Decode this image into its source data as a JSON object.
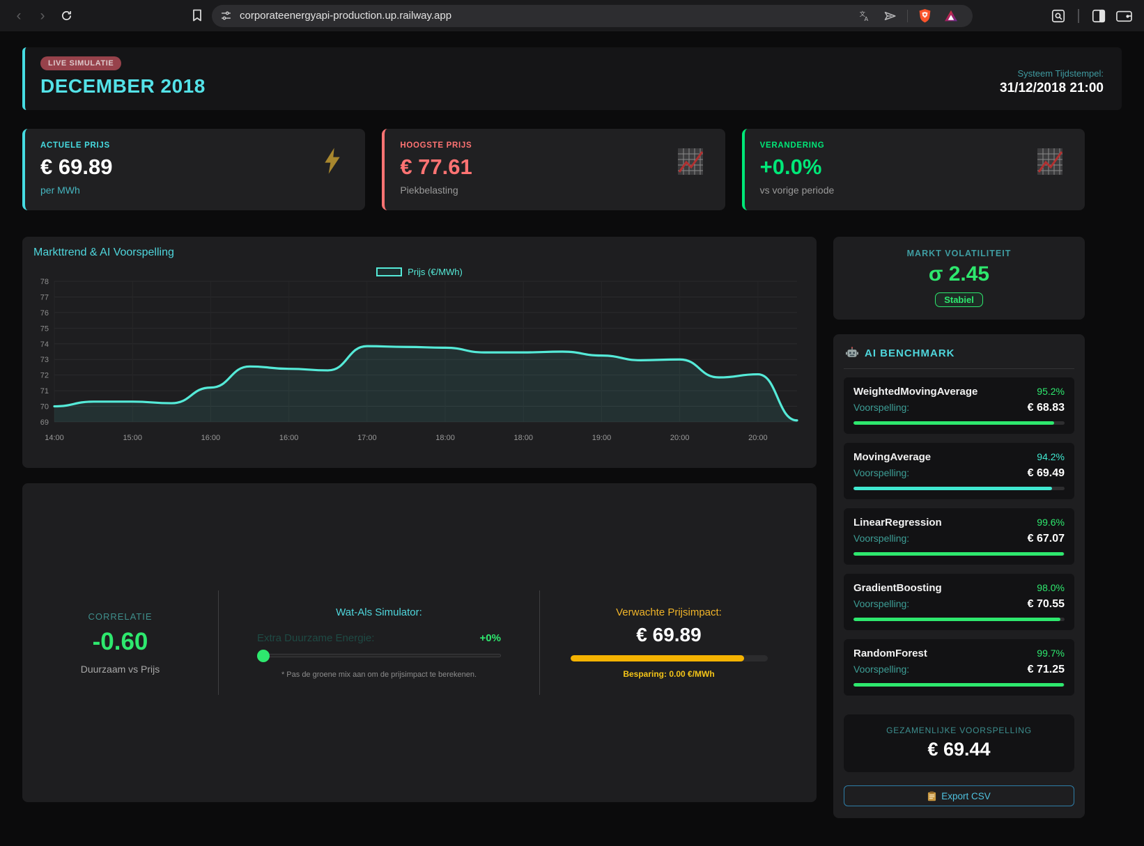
{
  "browser": {
    "url": "corporateenergyapi-production.up.railway.app"
  },
  "header": {
    "badge": "LIVE SIMULATIE",
    "title": "DECEMBER 2018",
    "timestamp_label": "Systeem Tijdstempel:",
    "timestamp_value": "31/12/2018 21:00"
  },
  "stat_cards": [
    {
      "label": "ACTUELE PRIJS",
      "value": "€ 69.89",
      "sub": "per MWh",
      "accent": "#46dce2",
      "sub_color": "#46b6c0",
      "value_color": "#ffffff",
      "icon": "lightning-icon"
    },
    {
      "label": "HOOGSTE PRIJS",
      "value": "€ 77.61",
      "sub": "Piekbelasting",
      "accent": "#ff7373",
      "sub_color": "#9a9a9a",
      "value_color": "#ff7373",
      "icon": "chart-up-icon"
    },
    {
      "label": "VERANDERING",
      "value": "+0.0%",
      "sub": "vs vorige periode",
      "accent": "#00e878",
      "sub_color": "#9a9a9a",
      "value_color": "#00e878",
      "icon": "chart-up-icon"
    }
  ],
  "chart_data": {
    "type": "area",
    "title": "Markttrend & AI Voorspelling",
    "legend": [
      "Prijs (€/MWh)"
    ],
    "line_color": "#55ead8",
    "fill_color": "rgba(90,230,212,0.10)",
    "x_tick_labels": [
      "14:00",
      "15:00",
      "16:00",
      "16:00",
      "17:00",
      "18:00",
      "18:00",
      "19:00",
      "20:00",
      "20:00"
    ],
    "y_ticks": [
      78,
      77,
      76,
      75,
      74,
      73,
      72,
      71,
      70,
      69
    ],
    "ylim": [
      69,
      78
    ],
    "series": [
      {
        "name": "Prijs (€/MWh)",
        "values": [
          70.0,
          70.3,
          70.3,
          70.2,
          71.2,
          72.55,
          72.4,
          72.3,
          73.85,
          73.8,
          73.75,
          73.45,
          73.45,
          73.5,
          73.25,
          72.95,
          73.0,
          71.85,
          72.05,
          69.1
        ]
      }
    ],
    "note": "x tick labels fall on even data indices; grid on; legend top-center"
  },
  "volatility": {
    "title": "MARKT VOLATILITEIT",
    "value": "σ 2.45",
    "badge": "Stabiel"
  },
  "benchmark": {
    "title": "AI BENCHMARK",
    "models": [
      {
        "name": "WeightedMovingAverage",
        "accuracy": "95.2%",
        "pct": 95.2,
        "label": "Voorspelling:",
        "value": "€ 68.83",
        "color": "#2ee86e"
      },
      {
        "name": "MovingAverage",
        "accuracy": "94.2%",
        "pct": 94.2,
        "label": "Voorspelling:",
        "value": "€ 69.49",
        "color": "#40e8d0"
      },
      {
        "name": "LinearRegression",
        "accuracy": "99.6%",
        "pct": 99.6,
        "label": "Voorspelling:",
        "value": "€ 67.07",
        "color": "#2ee86e"
      },
      {
        "name": "GradientBoosting",
        "accuracy": "98.0%",
        "pct": 98.0,
        "label": "Voorspelling:",
        "value": "€ 70.55",
        "color": "#2ee86e"
      },
      {
        "name": "RandomForest",
        "accuracy": "99.7%",
        "pct": 99.7,
        "label": "Voorspelling:",
        "value": "€ 71.25",
        "color": "#2ee86e"
      }
    ],
    "ensemble_label": "GEZAMENLIJKE VOORSPELLING",
    "ensemble_value": "€ 69.44",
    "export_label": "Export CSV"
  },
  "insights": {
    "correlation": {
      "label": "CORRELATIE",
      "value": "-0.60",
      "sub": "Duurzaam vs Prijs"
    },
    "simulator": {
      "title": "Wat-Als Simulator:",
      "slider_label": "Extra Duurzame Energie:",
      "slider_value": "+0%",
      "hint": "* Pas de groene mix aan om de prijsimpact te berekenen."
    },
    "impact": {
      "title": "Verwachte Prijsimpact:",
      "value": "€ 69.89",
      "progress_pct": 88,
      "saving": "Besparing: 0.00 €/MWh"
    }
  }
}
